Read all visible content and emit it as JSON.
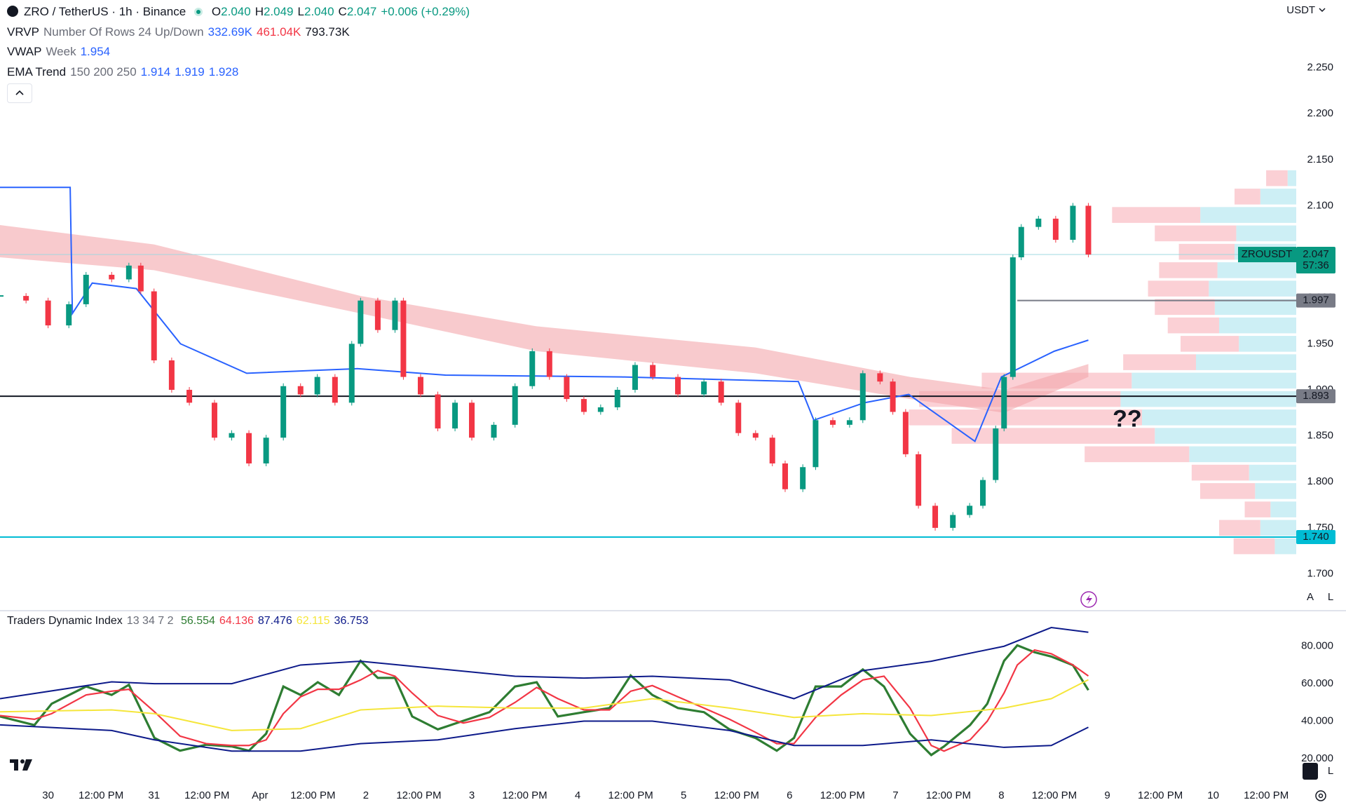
{
  "header": {
    "symbol": "ZRO / TetherUS · 1h · Binance",
    "ohlc": [
      {
        "label": "O",
        "value": "2.040"
      },
      {
        "label": "H",
        "value": "2.049"
      },
      {
        "label": "L",
        "value": "2.040"
      },
      {
        "label": "C",
        "value": "2.047"
      }
    ],
    "change": "+0.006 (+0.29%)",
    "currency": "USDT"
  },
  "indicators": [
    {
      "name": "VRVP",
      "params": "Number Of Rows 24 Up/Down",
      "values": [
        "332.69K",
        "461.04K",
        "793.73K"
      ]
    },
    {
      "name": "VWAP",
      "params": "Week",
      "values": [
        "1.954"
      ]
    },
    {
      "name": "EMA Trend",
      "params": "150 200 250",
      "values": [
        "1.914",
        "1.919",
        "1.928"
      ]
    }
  ],
  "scale_buttons": [
    "A",
    "L"
  ],
  "chart_data": [
    {
      "type": "candlestick",
      "x": [
        -10.9,
        -5,
        0,
        4.7,
        8.6,
        14.4,
        18.3,
        21,
        24,
        28,
        32,
        37.7,
        41.6,
        45.5,
        49.4,
        53.3,
        57.2,
        61,
        65,
        68.8,
        70.8,
        74.7,
        78.6,
        80.5,
        84.4,
        88.3,
        92.2,
        96,
        101,
        105.8,
        109.7,
        113.6,
        117.5,
        121.4,
        125.2,
        129,
        133,
        137,
        142.7,
        148.6,
        152.5,
        156.4,
        160.3,
        164.1,
        167,
        171,
        173.9,
        177.8,
        181.6,
        184.6,
        188.5,
        191.4,
        194.3,
        197.2,
        201,
        205,
        208.8,
        211.8,
        214.7,
        216.6,
        218.6,
        220.5,
        224.4,
        228.3,
        232.2,
        235.7
      ],
      "close": [
        2.002,
        1.997,
        1.97,
        1.993,
        2.025,
        2.02,
        2.035,
        2.007,
        1.932,
        1.9,
        1.886,
        1.848,
        1.853,
        1.82,
        1.848,
        1.904,
        1.895,
        1.914,
        1.886,
        1.95,
        1.997,
        1.965,
        1.997,
        1.914,
        1.895,
        1.858,
        1.886,
        1.848,
        1.862,
        1.904,
        1.942,
        1.914,
        1.89,
        1.876,
        1.881,
        1.9,
        1.927,
        1.914,
        1.895,
        1.909,
        1.886,
        1.853,
        1.848,
        1.82,
        1.792,
        1.816,
        1.867,
        1.862,
        1.867,
        1.918,
        1.909,
        1.876,
        1.83,
        1.774,
        1.75,
        1.764,
        1.774,
        1.802,
        1.858,
        1.914,
        2.044,
        2.077,
        2.086,
        2.063,
        2.1,
        2.047
      ],
      "up_color": "#089981",
      "down_color": "#f23645",
      "xlim": [
        -10.9,
        282.8
      ],
      "xticks": [
        {
          "value": 0,
          "label": "30"
        },
        {
          "value": 12,
          "label": "12:00 PM"
        },
        {
          "value": 24,
          "label": "31"
        },
        {
          "value": 36,
          "label": "12:00 PM"
        },
        {
          "value": 48,
          "label": "Apr"
        },
        {
          "value": 60,
          "label": "12:00 PM"
        },
        {
          "value": 72,
          "label": "2"
        },
        {
          "value": 84,
          "label": "12:00 PM"
        },
        {
          "value": 96,
          "label": "3"
        },
        {
          "value": 108,
          "label": "12:00 PM"
        },
        {
          "value": 120,
          "label": "4"
        },
        {
          "value": 132,
          "label": "12:00 PM"
        },
        {
          "value": 144,
          "label": "5"
        },
        {
          "value": 156,
          "label": "12:00 PM"
        },
        {
          "value": 168,
          "label": "6"
        },
        {
          "value": 180,
          "label": "12:00 PM"
        },
        {
          "value": 192,
          "label": "7"
        },
        {
          "value": 204,
          "label": "12:00 PM"
        },
        {
          "value": 216,
          "label": "8"
        },
        {
          "value": 228,
          "label": "12:00 PM"
        },
        {
          "value": 240,
          "label": "9"
        },
        {
          "value": 252,
          "label": "12:00 PM"
        },
        {
          "value": 264,
          "label": "10"
        },
        {
          "value": 276,
          "label": "12:00 PM"
        }
      ],
      "ylim": [
        1.66,
        2.3236
      ],
      "yticks": [
        {
          "value": 1.7,
          "label": "1.700"
        },
        {
          "value": 1.75,
          "label": "1.750"
        },
        {
          "value": 1.8,
          "label": "1.800"
        },
        {
          "value": 1.85,
          "label": "1.850"
        },
        {
          "value": 1.9,
          "label": "1.900"
        },
        {
          "value": 1.95,
          "label": "1.950"
        },
        {
          "value": 2,
          "label": "2.000"
        },
        {
          "value": 2.05,
          "label": "2.050"
        },
        {
          "value": 2.1,
          "label": "2.100"
        },
        {
          "value": 2.15,
          "label": "2.150"
        },
        {
          "value": 2.2,
          "label": "2.200"
        },
        {
          "value": 2.25,
          "label": "2.250"
        }
      ],
      "grid": false,
      "ema_band": {
        "color": "#f4a6ab",
        "x": [
          -10.9,
          24,
          70.8,
          110.7,
          160.3,
          195.3,
          216.6,
          235.7
        ],
        "upper": [
          2.079,
          2.058,
          2.002,
          1.969,
          1.946,
          1.914,
          1.9,
          1.928
        ],
        "lower": [
          2.044,
          2.03,
          1.983,
          1.942,
          1.918,
          1.89,
          1.875,
          1.914
        ]
      },
      "vwap": {
        "color": "#2962ff",
        "x": [
          -10.9,
          5,
          5.5,
          10,
          20,
          30,
          45,
          60,
          70,
          90,
          130,
          170,
          173.5,
          185,
          195,
          210,
          216,
          228,
          235.7
        ],
        "values": [
          2.12,
          2.12,
          1.983,
          2.016,
          2.01,
          1.95,
          1.918,
          1.921,
          1.923,
          1.916,
          1.914,
          1.909,
          1.867,
          1.886,
          1.895,
          1.844,
          1.914,
          1.942,
          1.954
        ]
      },
      "volume_profile": {
        "up_color": "#cdeff5",
        "down_color": "#fbd0d5",
        "prices": [
          2.13,
          2.11,
          2.09,
          2.07,
          2.05,
          2.03,
          2.01,
          1.99,
          1.97,
          1.95,
          1.93,
          1.91,
          1.89,
          1.87,
          1.85,
          1.83,
          1.81,
          1.79,
          1.77,
          1.75,
          1.73
        ],
        "up": [
          5.6,
          23.3,
          62.2,
          38.9,
          40,
          51.1,
          56.7,
          52.8,
          50,
          37.2,
          65,
          106.7,
          113.9,
          100,
          91.7,
          69.4,
          30.6,
          26.7,
          16.7,
          23.3,
          13.9
        ],
        "down": [
          13.9,
          16.7,
          57.2,
          52.8,
          36.1,
          37.8,
          39.4,
          38.9,
          33.3,
          37.8,
          47.2,
          97.2,
          130.6,
          151.1,
          131.7,
          67.8,
          37.2,
          35.6,
          16.7,
          26.7,
          26.7
        ]
      },
      "levels": [
        {
          "value": 1.997,
          "color": "#787b86",
          "x_start": 219.6
        },
        {
          "value": 1.893,
          "color": "#131722"
        },
        {
          "value": 1.74,
          "label": "1.740",
          "color": "#00bcd4"
        }
      ],
      "last_price": {
        "symbol": "ZROUSDT",
        "value": 2.047,
        "countdown": "57:36",
        "color": "#089981"
      },
      "annotations": [
        {
          "text": "??",
          "x": 244.5,
          "y": 1.867,
          "color": "#f23645"
        }
      ]
    },
    {
      "type": "line",
      "legend": {
        "name": "Traders Dynamic Index",
        "params": "13 34 7 2",
        "values": [
          "56.554",
          "64.136",
          "87.476",
          "62.115",
          "36.753"
        ]
      },
      "ylim": [
        8,
        99
      ],
      "yticks": [
        {
          "value": 20,
          "label": "20.000"
        },
        {
          "value": 40,
          "label": "40.000"
        },
        {
          "value": 60,
          "label": "60.000"
        },
        {
          "value": 80,
          "label": "80.000"
        }
      ],
      "series": [
        {
          "color": "#2e7d32",
          "x": [
            -10.9,
            -3.1,
            0.8,
            8.6,
            14.4,
            18.3,
            24.1,
            29.9,
            35.8,
            41.6,
            45.5,
            49.4,
            53.3,
            57.2,
            61.1,
            65.9,
            70.8,
            74.7,
            78.6,
            82.5,
            88.3,
            94.1,
            100,
            105.8,
            110.7,
            115.5,
            121.4,
            127.2,
            132,
            136.9,
            142.7,
            148.6,
            154.4,
            160.3,
            165.1,
            169,
            173.9,
            179.7,
            184.6,
            189.4,
            195.3,
            200.1,
            203,
            208.9,
            212.8,
            216.6,
            219.6,
            223.5,
            227.3,
            232.2,
            235.7
          ],
          "values": [
            42.5,
            37.9,
            49.3,
            58.5,
            54,
            59.4,
            31,
            24.2,
            27.4,
            26.5,
            24.2,
            33.3,
            58.5,
            54,
            60.8,
            54,
            72.2,
            63.1,
            63.1,
            42.5,
            35.6,
            40.2,
            44.8,
            58.5,
            60.8,
            42.5,
            44.8,
            47,
            64.4,
            54,
            47,
            44.8,
            35.6,
            31,
            24.2,
            31,
            58.5,
            58.5,
            67.6,
            58.5,
            33.3,
            21.9,
            26.5,
            37.9,
            49.3,
            72.2,
            80.5,
            76.8,
            74.5,
            69.9,
            56.554
          ]
        },
        {
          "color": "#f23645",
          "x": [
            -10.9,
            -3.1,
            0.8,
            8.6,
            14.4,
            18.3,
            24.1,
            29.9,
            35.8,
            41.6,
            45.5,
            49.4,
            53.3,
            57.2,
            61.1,
            65.9,
            70.8,
            74.7,
            78.6,
            82.5,
            88.3,
            94.1,
            100,
            105.8,
            110.7,
            115.5,
            121.4,
            127.2,
            132,
            136.9,
            142.7,
            148.6,
            154.4,
            160.3,
            165.1,
            169,
            173.9,
            179.7,
            184.6,
            189.4,
            195.3,
            200.1,
            203,
            208.9,
            212.8,
            216.6,
            219.6,
            223.5,
            227.3,
            232.2,
            235.7
          ],
          "values": [
            43,
            41,
            44,
            54,
            56,
            57,
            45,
            32,
            28,
            27,
            27,
            30,
            44,
            53,
            57,
            57,
            62,
            67,
            64,
            55,
            43,
            39,
            42,
            50,
            58,
            52,
            46,
            46,
            56,
            59,
            53,
            47,
            41,
            34,
            28,
            28,
            42,
            54,
            62,
            64,
            47,
            27,
            24,
            30,
            40,
            55,
            70,
            78,
            76,
            70,
            64.136
          ]
        },
        {
          "color": "#0d1a8a",
          "x": [
            -10.9,
            14.4,
            24.1,
            41.6,
            57.2,
            70.8,
            88.3,
            105.8,
            121.4,
            136.9,
            154.4,
            169,
            184.6,
            200.1,
            216.6,
            227.3,
            235.7
          ],
          "values": [
            52,
            61,
            60,
            60,
            70,
            72,
            68,
            64,
            63,
            64,
            62,
            52,
            67,
            72,
            80,
            90,
            87.476
          ]
        },
        {
          "color": "#f5e63b",
          "x": [
            -10.9,
            14.4,
            24.1,
            41.6,
            57.2,
            70.8,
            88.3,
            105.8,
            121.4,
            136.9,
            154.4,
            169,
            184.6,
            200.1,
            216.6,
            227.3,
            235.7
          ],
          "values": [
            45,
            46,
            44,
            35,
            36,
            46,
            48,
            47,
            47,
            52,
            47,
            42,
            44,
            43,
            47,
            52,
            62.115
          ]
        },
        {
          "color": "#0d1a8a",
          "x": [
            -10.9,
            14.4,
            24.1,
            41.6,
            57.2,
            70.8,
            88.3,
            105.8,
            121.4,
            136.9,
            154.4,
            169,
            184.6,
            200.1,
            216.6,
            227.3,
            235.7
          ],
          "values": [
            38,
            35,
            30,
            24,
            24,
            28,
            30,
            36,
            40,
            40,
            35,
            27,
            27,
            30,
            26,
            27,
            36.753
          ]
        }
      ]
    }
  ]
}
